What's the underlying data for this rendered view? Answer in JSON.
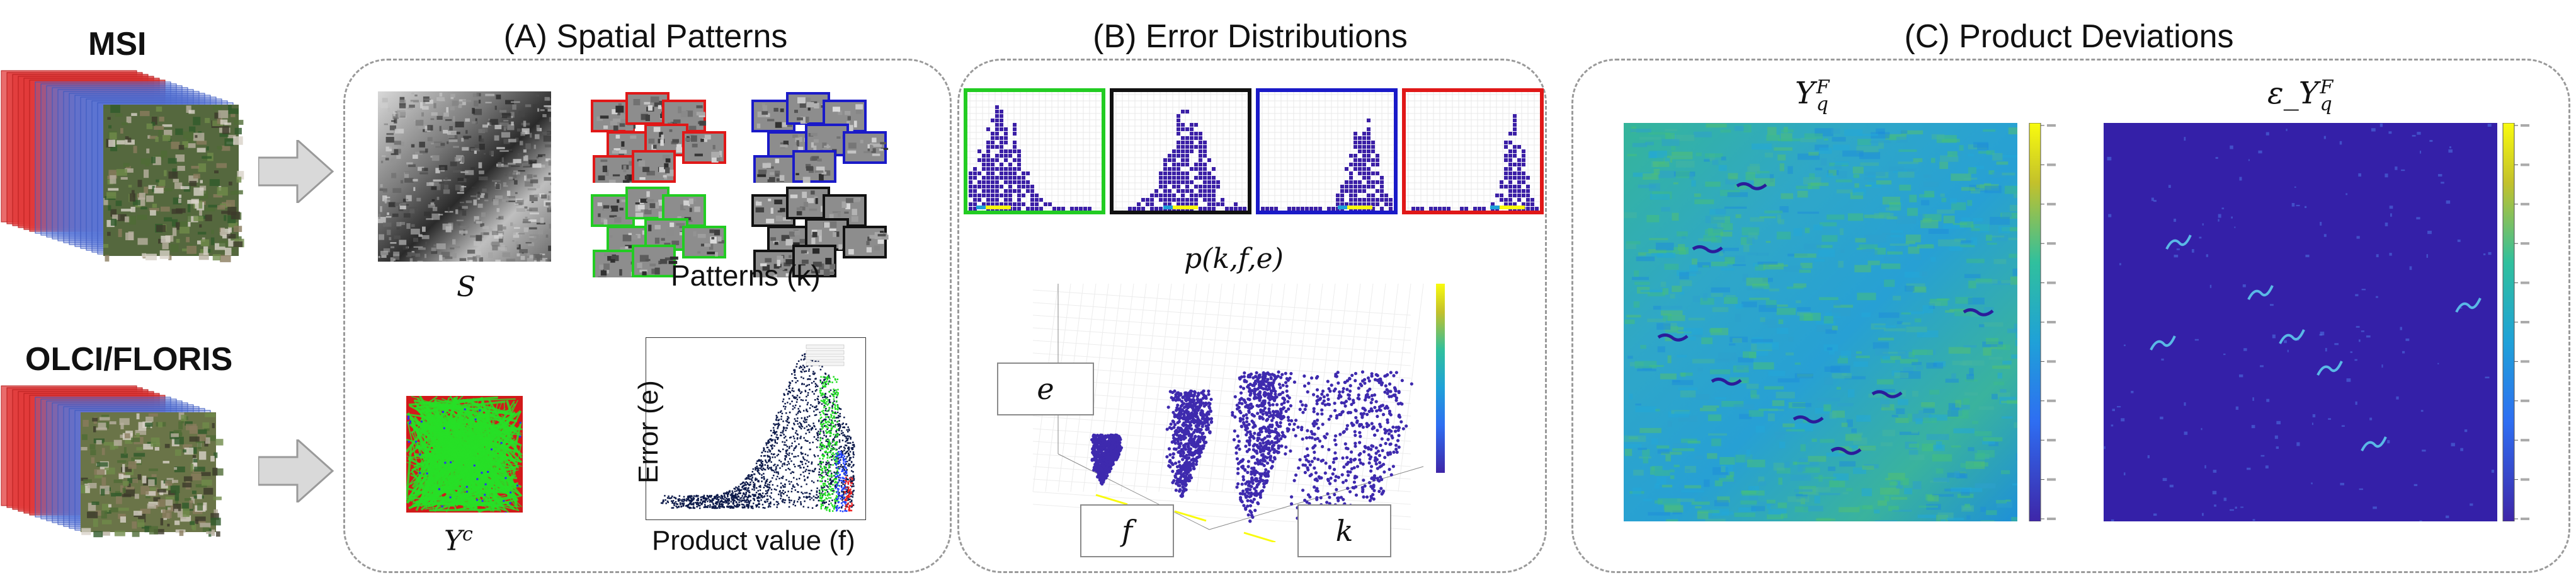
{
  "sensors": {
    "msi": "MSI",
    "olci": "OLCI/FLORIS"
  },
  "panels": {
    "a": {
      "title": "(A) Spatial Patterns",
      "s_label": "S",
      "patterns_label": "Patterns (k)",
      "yc_label": "Y",
      "yc_sup": "c",
      "scatter": {
        "ylabel": "Error (e)",
        "xlabel": "Product value (f)"
      }
    },
    "b": {
      "title": "(B) Error Distributions",
      "plot3d_title": "p(k,f,e)",
      "axes": {
        "e": "e",
        "f": "f",
        "k": "k"
      }
    },
    "c": {
      "title": "(C) Product Deviations",
      "left_title": "Y",
      "left_sup": "F",
      "left_sub": "q",
      "right_prefix": "ε_Y",
      "right_sup": "F",
      "right_sub": "q"
    }
  },
  "colors": {
    "pattern_red": "#e01818",
    "pattern_blue": "#1a1ac8",
    "pattern_green": "#22cc22",
    "pattern_black": "#111111",
    "parula_low": "#3e26a8",
    "parula_mid": "#1fa1d8",
    "parula_high": "#f9fb0e"
  }
}
